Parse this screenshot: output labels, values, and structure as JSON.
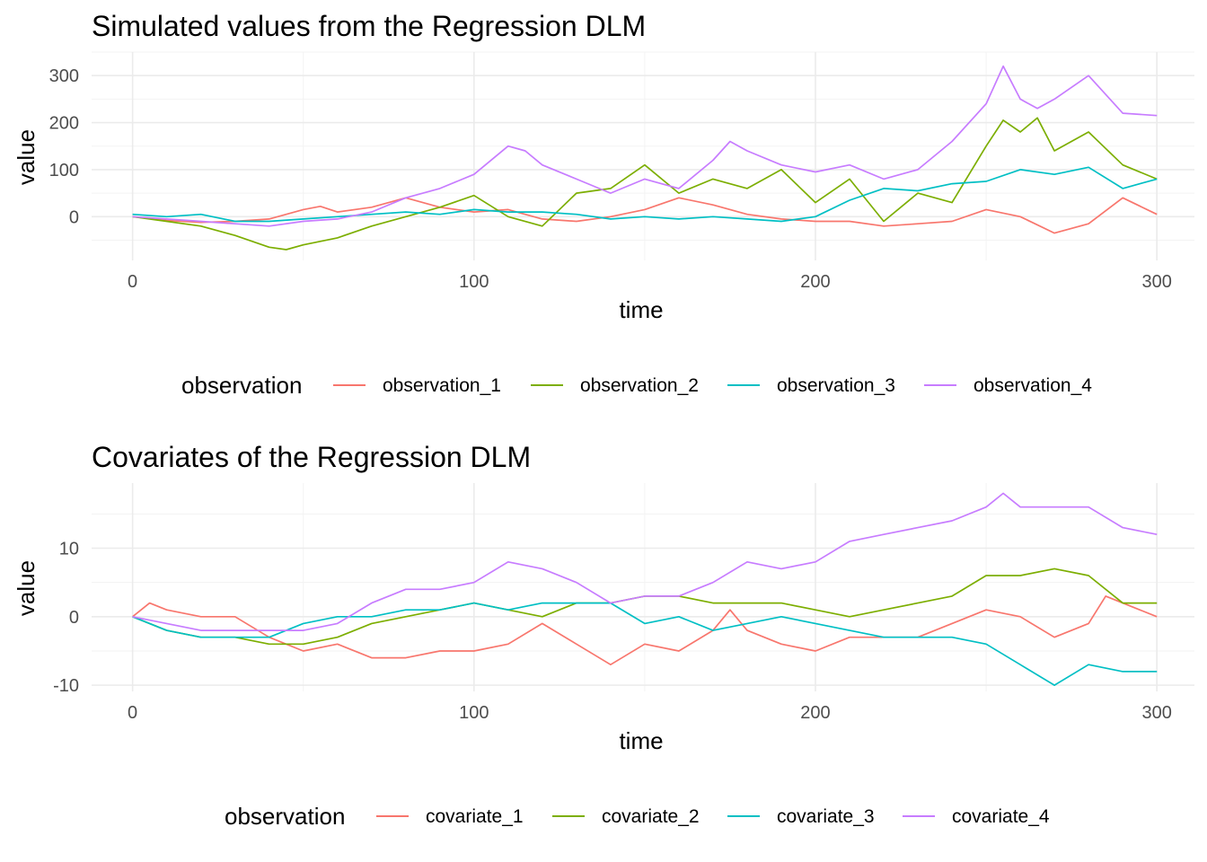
{
  "chart_data": [
    {
      "type": "line",
      "title": "Simulated values from the Regression DLM",
      "xlabel": "time",
      "ylabel": "value",
      "xlim": [
        -12,
        311
      ],
      "ylim": [
        -93,
        350
      ],
      "x_ticks": [
        0,
        100,
        200,
        300
      ],
      "y_ticks": [
        0,
        100,
        200,
        300
      ],
      "grid": true,
      "legend": {
        "title": "observation",
        "position": "bottom"
      },
      "series": [
        {
          "name": "observation_1",
          "color": "#F8766D",
          "x": [
            0,
            10,
            20,
            30,
            40,
            50,
            55,
            60,
            70,
            80,
            90,
            100,
            110,
            120,
            130,
            140,
            150,
            160,
            170,
            180,
            190,
            200,
            210,
            220,
            230,
            240,
            250,
            260,
            270,
            280,
            290,
            300
          ],
          "values": [
            0,
            -8,
            -12,
            -10,
            -5,
            15,
            22,
            10,
            20,
            40,
            20,
            10,
            15,
            -5,
            -10,
            0,
            15,
            40,
            25,
            5,
            -5,
            -10,
            -10,
            -20,
            -15,
            -10,
            15,
            0,
            -35,
            -15,
            40,
            5
          ]
        },
        {
          "name": "observation_2",
          "color": "#7CAE00",
          "x": [
            0,
            10,
            20,
            30,
            40,
            45,
            50,
            60,
            70,
            80,
            90,
            100,
            110,
            120,
            130,
            140,
            150,
            160,
            170,
            180,
            190,
            200,
            210,
            220,
            230,
            240,
            250,
            255,
            260,
            265,
            270,
            280,
            290,
            300
          ],
          "values": [
            0,
            -10,
            -20,
            -40,
            -65,
            -70,
            -60,
            -45,
            -20,
            0,
            20,
            45,
            0,
            -20,
            50,
            60,
            110,
            50,
            80,
            60,
            100,
            30,
            80,
            -10,
            50,
            30,
            150,
            205,
            180,
            210,
            140,
            180,
            110,
            80
          ]
        },
        {
          "name": "observation_3",
          "color": "#00BFC4",
          "x": [
            0,
            10,
            20,
            30,
            40,
            50,
            60,
            70,
            80,
            90,
            100,
            110,
            120,
            130,
            140,
            150,
            160,
            170,
            180,
            190,
            200,
            210,
            220,
            230,
            240,
            250,
            260,
            270,
            280,
            290,
            300
          ],
          "values": [
            5,
            0,
            5,
            -10,
            -10,
            -5,
            0,
            5,
            10,
            5,
            15,
            10,
            10,
            5,
            -5,
            0,
            -5,
            0,
            -5,
            -10,
            0,
            35,
            60,
            55,
            70,
            75,
            100,
            90,
            105,
            60,
            80
          ]
        },
        {
          "name": "observation_4",
          "color": "#C77CFF",
          "x": [
            0,
            10,
            20,
            30,
            40,
            50,
            60,
            70,
            80,
            90,
            100,
            110,
            115,
            120,
            130,
            140,
            150,
            160,
            170,
            175,
            180,
            190,
            200,
            210,
            220,
            230,
            240,
            250,
            255,
            260,
            265,
            270,
            280,
            290,
            300
          ],
          "values": [
            0,
            -5,
            -10,
            -15,
            -20,
            -10,
            -5,
            10,
            40,
            60,
            90,
            150,
            140,
            110,
            80,
            50,
            80,
            60,
            120,
            160,
            140,
            110,
            95,
            110,
            80,
            100,
            160,
            240,
            320,
            250,
            230,
            250,
            300,
            220,
            215
          ]
        }
      ]
    },
    {
      "type": "line",
      "title": "Covariates of the Regression DLM",
      "xlabel": "time",
      "ylabel": "value",
      "xlim": [
        -12,
        311
      ],
      "ylim": [
        -10.9,
        19.5
      ],
      "x_ticks": [
        0,
        100,
        200,
        300
      ],
      "y_ticks": [
        -10,
        0,
        10
      ],
      "grid": true,
      "legend": {
        "title": "observation",
        "position": "bottom"
      },
      "series": [
        {
          "name": "covariate_1",
          "color": "#F8766D",
          "x": [
            0,
            5,
            10,
            20,
            30,
            40,
            50,
            60,
            70,
            80,
            90,
            100,
            110,
            120,
            130,
            140,
            150,
            160,
            170,
            175,
            180,
            190,
            200,
            210,
            220,
            230,
            240,
            250,
            260,
            270,
            280,
            285,
            290,
            300
          ],
          "values": [
            0,
            2,
            1,
            0,
            0,
            -3,
            -5,
            -4,
            -6,
            -6,
            -5,
            -5,
            -4,
            -1,
            -4,
            -7,
            -4,
            -5,
            -2,
            1,
            -2,
            -4,
            -5,
            -3,
            -3,
            -3,
            -1,
            1,
            0,
            -3,
            -1,
            3,
            2,
            0
          ]
        },
        {
          "name": "covariate_2",
          "color": "#7CAE00",
          "x": [
            0,
            10,
            20,
            30,
            40,
            50,
            60,
            70,
            80,
            90,
            100,
            110,
            120,
            130,
            140,
            150,
            160,
            170,
            180,
            190,
            200,
            210,
            220,
            230,
            240,
            250,
            260,
            270,
            280,
            290,
            300
          ],
          "values": [
            0,
            -2,
            -3,
            -3,
            -4,
            -4,
            -3,
            -1,
            0,
            1,
            2,
            1,
            0,
            2,
            2,
            3,
            3,
            2,
            2,
            2,
            1,
            0,
            1,
            2,
            3,
            6,
            6,
            7,
            6,
            2,
            2
          ]
        },
        {
          "name": "covariate_3",
          "color": "#00BFC4",
          "x": [
            0,
            10,
            20,
            30,
            40,
            50,
            60,
            70,
            80,
            90,
            100,
            110,
            120,
            130,
            140,
            150,
            160,
            170,
            180,
            190,
            200,
            210,
            220,
            230,
            240,
            250,
            260,
            270,
            280,
            290,
            300
          ],
          "values": [
            0,
            -2,
            -3,
            -3,
            -3,
            -1,
            0,
            0,
            1,
            1,
            2,
            1,
            2,
            2,
            2,
            -1,
            0,
            -2,
            -1,
            0,
            -1,
            -2,
            -3,
            -3,
            -3,
            -4,
            -7,
            -10,
            -7,
            -8,
            -8
          ]
        },
        {
          "name": "covariate_4",
          "color": "#C77CFF",
          "x": [
            0,
            10,
            20,
            30,
            40,
            50,
            60,
            70,
            80,
            90,
            100,
            110,
            120,
            130,
            140,
            150,
            160,
            170,
            180,
            190,
            200,
            210,
            220,
            230,
            240,
            250,
            255,
            260,
            270,
            280,
            290,
            300
          ],
          "values": [
            0,
            -1,
            -2,
            -2,
            -2,
            -2,
            -1,
            2,
            4,
            4,
            5,
            8,
            7,
            5,
            2,
            3,
            3,
            5,
            8,
            7,
            8,
            11,
            12,
            13,
            14,
            16,
            18,
            16,
            16,
            16,
            13,
            12
          ]
        }
      ]
    }
  ]
}
